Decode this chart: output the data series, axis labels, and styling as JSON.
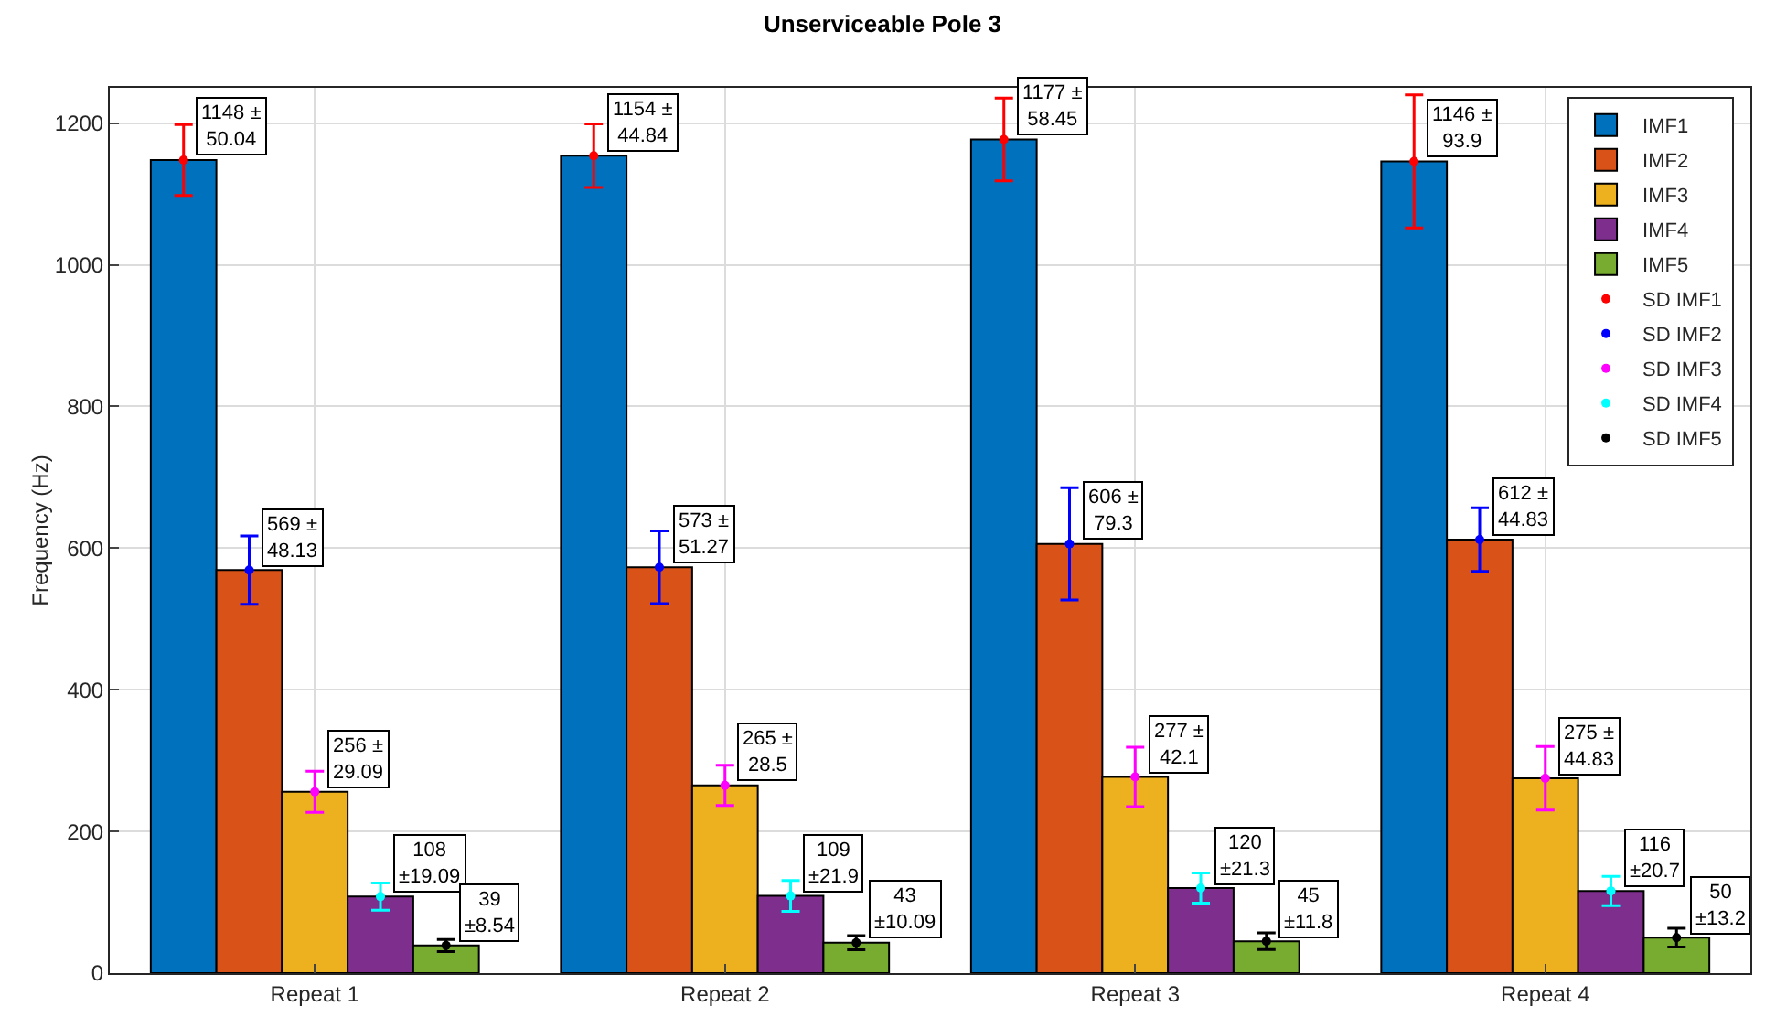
{
  "chart_data": {
    "type": "bar",
    "title": "Unserviceable Pole 3",
    "ylabel": "Frequency (Hz)",
    "categories": [
      "Repeat 1",
      "Repeat 2",
      "Repeat 3",
      "Repeat 4"
    ],
    "series": [
      {
        "name": "IMF1",
        "color": "#0072bd",
        "values": [
          1148,
          1154,
          1177,
          1146
        ],
        "value_labels": [
          "1148 ± 50.04",
          "1154 ± 44.84",
          "1177 ± 58.45",
          "1146 ± 93.9"
        ]
      },
      {
        "name": "IMF2",
        "color": "#d95319",
        "values": [
          569,
          573,
          606,
          612
        ],
        "value_labels": [
          "569 ± 48.13",
          "573 ± 51.27",
          "606 ± 79.3",
          "612 ± 44.83"
        ]
      },
      {
        "name": "IMF3",
        "color": "#edb120",
        "values": [
          256,
          265,
          277,
          275
        ],
        "value_labels": [
          "256 ± 29.09",
          "265 ± 28.5",
          "277 ± 42.1",
          "275 ± 44.83"
        ]
      },
      {
        "name": "IMF4",
        "color": "#7e2f8e",
        "values": [
          108,
          109,
          120,
          116
        ],
        "value_labels": [
          "108 ±19.09",
          "109 ±21.9",
          "120 ±21.3",
          "116 ±20.7"
        ]
      },
      {
        "name": "IMF5",
        "color": "#77ac30",
        "values": [
          39,
          43,
          45,
          50
        ],
        "value_labels": [
          "39 ±8.54",
          "43 ±10.09",
          "45 ±11.8",
          "50 ±13.2"
        ]
      },
      {
        "name": "SD IMF1",
        "type": "scatter",
        "color": "#ff0000",
        "x": [
          "Repeat 1",
          "Repeat 2",
          "Repeat 3",
          "Repeat 4"
        ],
        "values": [
          1148,
          1154,
          1177,
          1146
        ],
        "errors": [
          50.04,
          44.84,
          58.45,
          93.9
        ]
      },
      {
        "name": "SD IMF2",
        "type": "scatter",
        "color": "#0000ff",
        "x": [
          "Repeat 1",
          "Repeat 2",
          "Repeat 3",
          "Repeat 4"
        ],
        "values": [
          569,
          573,
          606,
          612
        ],
        "errors": [
          48.13,
          51.27,
          79.3,
          44.83
        ]
      },
      {
        "name": "SD IMF3",
        "type": "scatter",
        "color": "#ff00ff",
        "x": [
          "Repeat 1",
          "Repeat 2",
          "Repeat 3",
          "Repeat 4"
        ],
        "values": [
          256,
          265,
          277,
          275
        ],
        "errors": [
          29.09,
          28.5,
          42.1,
          44.83
        ]
      },
      {
        "name": "SD IMF4",
        "type": "scatter",
        "color": "#00ffff",
        "x": [
          "Repeat 1",
          "Repeat 2",
          "Repeat 3",
          "Repeat 4"
        ],
        "values": [
          108,
          109,
          120,
          116
        ],
        "errors": [
          19.09,
          21.9,
          21.3,
          20.7
        ]
      },
      {
        "name": "SD IMF5",
        "type": "scatter",
        "color": "#000000",
        "x": [
          "Repeat 1",
          "Repeat 2",
          "Repeat 3",
          "Repeat 4"
        ],
        "values": [
          39,
          43,
          45,
          50
        ],
        "errors": [
          8.54,
          10.09,
          11.8,
          13.2
        ]
      }
    ],
    "ylim": [
      0,
      1250
    ],
    "yticks": [
      0,
      200,
      400,
      600,
      800,
      1000,
      1200
    ],
    "grid": true,
    "legend": "top right"
  }
}
